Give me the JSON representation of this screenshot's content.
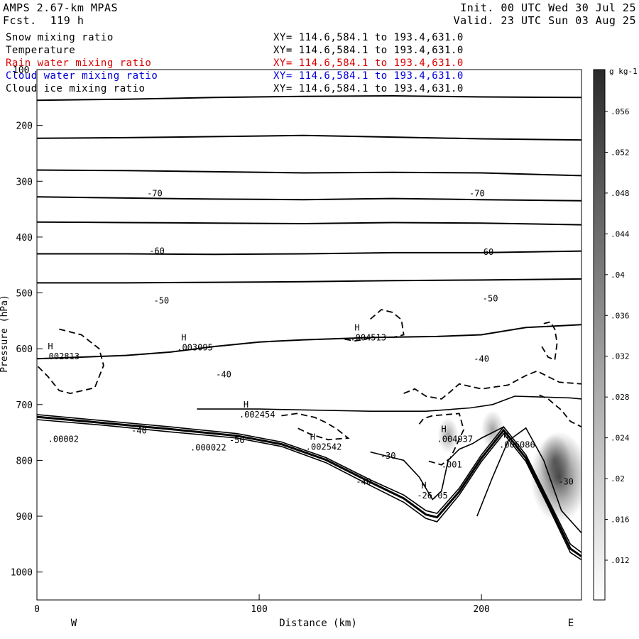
{
  "header": {
    "model": "AMPS 2.67-km MPAS",
    "forecast_label": "Fcst.",
    "forecast_value": "119 h",
    "init_label": "Init.",
    "init_value": "00 UTC Wed 30 Jul 25",
    "valid_label": "Valid.",
    "valid_value": "23 UTC Sun 03 Aug 25"
  },
  "legend": [
    {
      "name": "Snow mixing ratio",
      "range": "XY= 114.6,584.1 to 193.4,631.0",
      "color": "#000000"
    },
    {
      "name": "Temperature",
      "range": "XY= 114.6,584.1 to 193.4,631.0",
      "color": "#000000"
    },
    {
      "name": "Rain water mixing ratio",
      "range": "XY= 114.6,584.1 to 193.4,631.0",
      "color": "#dd0000"
    },
    {
      "name": "Cloud water mixing ratio",
      "range": "XY= 114.6,584.1 to 193.4,631.0",
      "color": "#0000dd"
    },
    {
      "name": "Cloud ice mixing ratio",
      "range": "XY= 114.6,584.1 to 193.4,631.0",
      "color": "#000000"
    }
  ],
  "chart_data": {
    "type": "line",
    "xlabel": "Distance (km)",
    "ylabel": "Pressure (hPa)",
    "xlim": [
      0,
      245
    ],
    "ylim": [
      100,
      1050
    ],
    "x_ticks": [
      0,
      100,
      200
    ],
    "y_ticks": [
      200,
      300,
      400,
      500,
      600,
      700,
      800,
      900,
      1000
    ],
    "y_tick_labels": [
      "200",
      "300",
      "400",
      "500",
      "600",
      "700",
      "800",
      "900",
      "1000"
    ],
    "top_tick_label": "100",
    "x_tick_labels": [
      "0",
      "100",
      "200"
    ],
    "left_end_label": "W",
    "right_end_label": "E",
    "isotherm_labels": [
      {
        "text": "-70",
        "x": 53,
        "p": 322
      },
      {
        "text": "-70",
        "x": 198,
        "p": 322
      },
      {
        "text": "-60",
        "x": 54,
        "p": 425
      },
      {
        "text": "-60",
        "x": 202,
        "p": 427
      },
      {
        "text": "-50",
        "x": 56,
        "p": 514
      },
      {
        "text": "-50",
        "x": 204,
        "p": 510
      },
      {
        "text": "-40",
        "x": 84,
        "p": 646
      },
      {
        "text": "-40",
        "x": 200,
        "p": 618
      },
      {
        "text": "-40",
        "x": 46,
        "p": 747
      },
      {
        "text": "-50",
        "x": 90,
        "p": 764
      },
      {
        "text": "-40",
        "x": 147,
        "p": 838
      },
      {
        "text": "-30",
        "x": 158,
        "p": 792
      },
      {
        "text": "-30",
        "x": 238,
        "p": 838
      }
    ],
    "extrema_labels": [
      {
        "mark": "H",
        "value": ".002813",
        "x": 3,
        "p": 614
      },
      {
        "mark": "H",
        "value": ".003095",
        "x": 63,
        "p": 598
      },
      {
        "mark": "H",
        "value": ".004513",
        "x": 141,
        "p": 580
      },
      {
        "mark": "H",
        "value": ".002454",
        "x": 91,
        "p": 718
      },
      {
        "mark": "H",
        "value": ".002542",
        "x": 121,
        "p": 776
      },
      {
        "mark": "H",
        "value": ".004937",
        "x": 180,
        "p": 762
      },
      {
        "mark": "H",
        "value": ".006086",
        "x": 208,
        "p": 772
      },
      {
        "mark": "",
        "value": ".00002",
        "x": 5,
        "p": 762
      },
      {
        "mark": "",
        "value": ".000022",
        "x": 69,
        "p": 777
      },
      {
        "mark": "",
        "value": ".001",
        "x": 182,
        "p": 808
      },
      {
        "mark": "H",
        "value": "-26.05",
        "x": 171,
        "p": 863
      }
    ],
    "colorbar": {
      "unit": "g kg-1",
      "ticks": [
        ".056",
        ".052",
        ".048",
        ".044",
        ".04",
        ".036",
        ".032",
        ".028",
        ".024",
        ".02",
        ".016",
        ".012"
      ],
      "range": [
        0.008,
        0.06
      ]
    },
    "isotherm_series": [
      {
        "x": [
          0,
          40,
          80,
          120,
          160,
          200,
          245
        ],
        "p": [
          155,
          153,
          150,
          148,
          147,
          149,
          150
        ]
      },
      {
        "x": [
          0,
          40,
          80,
          120,
          160,
          200,
          245
        ],
        "p": [
          223,
          222,
          220,
          218,
          221,
          224,
          226
        ]
      },
      {
        "x": [
          0,
          40,
          80,
          120,
          160,
          200,
          245
        ],
        "p": [
          280,
          281,
          283,
          285,
          284,
          285,
          290
        ]
      },
      {
        "x": [
          0,
          40,
          80,
          120,
          160,
          200,
          245
        ],
        "p": [
          328,
          330,
          332,
          333,
          331,
          333,
          335
        ]
      },
      {
        "x": [
          0,
          40,
          80,
          120,
          160,
          200,
          245
        ],
        "p": [
          373,
          374,
          375,
          376,
          374,
          375,
          378
        ]
      },
      {
        "x": [
          0,
          40,
          80,
          120,
          160,
          200,
          245
        ],
        "p": [
          430,
          430,
          431,
          430,
          428,
          428,
          425
        ]
      },
      {
        "x": [
          0,
          40,
          80,
          120,
          160,
          200,
          245
        ],
        "p": [
          482,
          482,
          481,
          480,
          478,
          477,
          475
        ]
      },
      {
        "x": [
          0,
          20,
          40,
          60,
          80,
          100,
          120,
          150,
          180,
          200,
          220,
          245
        ],
        "p": [
          618,
          615,
          612,
          606,
          596,
          588,
          584,
          580,
          578,
          575,
          562,
          557
        ]
      }
    ],
    "surface_series": [
      {
        "x": [
          0,
          30,
          60,
          90,
          110,
          130,
          150,
          165,
          175,
          180,
          190,
          200,
          210,
          220,
          230,
          240,
          245
        ],
        "p": [
          718,
          729,
          740,
          752,
          767,
          795,
          835,
          862,
          890,
          895,
          850,
          790,
          740,
          790,
          870,
          950,
          965
        ]
      },
      {
        "x": [
          0,
          30,
          60,
          90,
          110,
          130,
          150,
          165,
          175,
          180,
          190,
          200,
          210,
          220,
          230,
          240,
          245
        ],
        "p": [
          722,
          733,
          744,
          756,
          771,
          799,
          839,
          868,
          897,
          902,
          856,
          796,
          746,
          796,
          876,
          958,
          972
        ]
      },
      {
        "x": [
          0,
          30,
          60,
          90,
          110,
          130,
          150,
          165,
          175,
          180,
          190,
          200,
          210,
          220,
          230,
          240,
          245
        ],
        "p": [
          727,
          737,
          749,
          760,
          775,
          804,
          845,
          875,
          904,
          910,
          862,
          802,
          752,
          802,
          882,
          965,
          978
        ]
      }
    ],
    "warm_contour_series": [
      {
        "x": [
          72,
          100,
          150,
          175,
          185,
          195,
          205,
          215,
          240,
          245
        ],
        "p": [
          708,
          708,
          712,
          712,
          709,
          706,
          700,
          685,
          688,
          690
        ]
      },
      {
        "x": [
          150,
          165,
          172,
          178,
          182,
          185,
          190,
          196,
          200,
          205,
          210
        ],
        "p": [
          785,
          800,
          830,
          870,
          855,
          800,
          780,
          770,
          760,
          750,
          740
        ]
      },
      {
        "x": [
          198,
          205,
          212,
          220,
          228,
          236,
          245
        ],
        "p": [
          900,
          830,
          765,
          742,
          800,
          890,
          930
        ]
      }
    ],
    "dashed_snow_series": [
      {
        "x": [
          10,
          20,
          28,
          30,
          26,
          15,
          10,
          5,
          0
        ],
        "p": [
          565,
          575,
          600,
          630,
          670,
          680,
          675,
          650,
          630
        ]
      },
      {
        "x": [
          165,
          170,
          175,
          182,
          186,
          190,
          200,
          212,
          220,
          225,
          230,
          235,
          245
        ],
        "p": [
          680,
          672,
          685,
          690,
          677,
          663,
          672,
          665,
          648,
          640,
          650,
          660,
          663
        ]
      },
      {
        "x": [
          226,
          230,
          233,
          236,
          240,
          245
        ],
        "p": [
          683,
          690,
          700,
          710,
          730,
          740
        ]
      },
      {
        "x": [
          110,
          117,
          125,
          130,
          135,
          140,
          131,
          123,
          116
        ],
        "p": [
          720,
          716,
          723,
          732,
          744,
          760,
          763,
          753,
          740
        ]
      },
      {
        "x": [
          150,
          155,
          160,
          164,
          165,
          160
        ],
        "p": [
          547,
          530,
          535,
          548,
          575,
          580
        ]
      },
      {
        "x": [
          228,
          231,
          233,
          234,
          233,
          230,
          227
        ],
        "p": [
          555,
          552,
          565,
          590,
          620,
          615,
          595
        ]
      },
      {
        "x": [
          172,
          174,
          178,
          190,
          192,
          186,
          182,
          175
        ],
        "p": [
          735,
          725,
          720,
          716,
          745,
          796,
          808,
          800
        ]
      },
      {
        "x": [
          150,
          148,
          143,
          137
        ],
        "p": [
          580,
          583,
          586,
          582
        ]
      }
    ],
    "shading_cells": [
      {
        "x": 185,
        "p": 755,
        "value": 0.014
      },
      {
        "x": 205,
        "p": 745,
        "value": 0.016
      },
      {
        "x": 233,
        "p": 800,
        "value": 0.024
      },
      {
        "x": 235,
        "p": 830,
        "value": 0.048
      }
    ],
    "grid": false,
    "legend_placement": "top-left"
  }
}
